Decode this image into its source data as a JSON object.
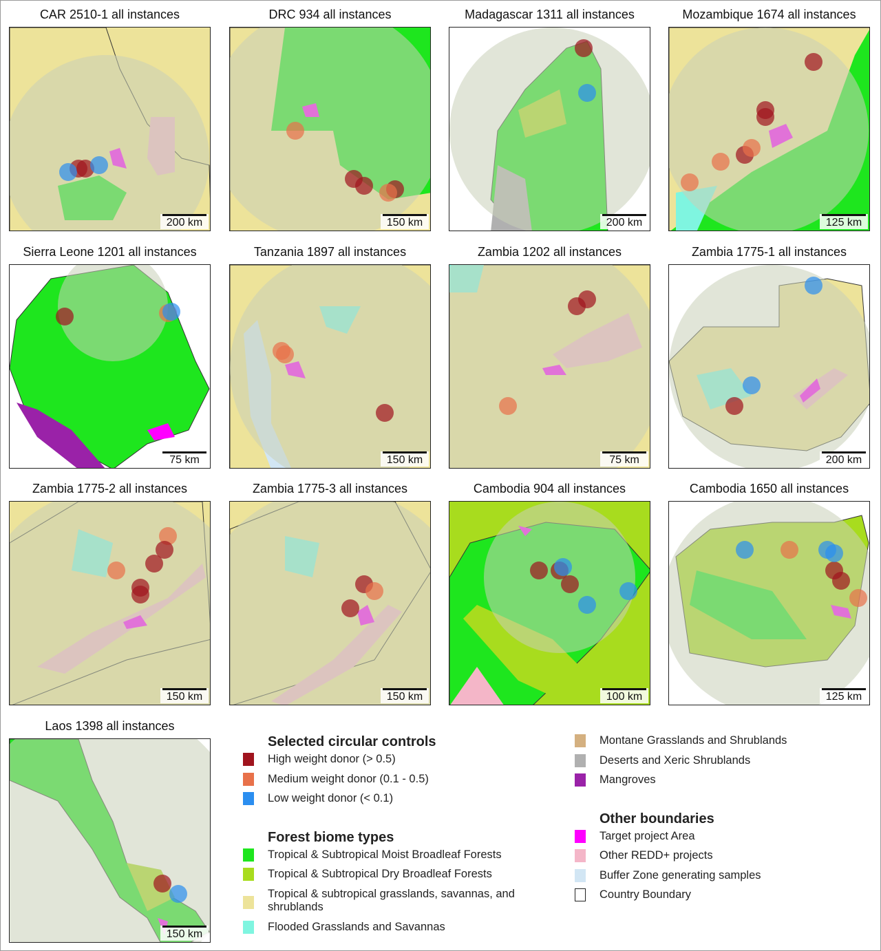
{
  "panels": [
    {
      "title": "CAR 2510-1 all instances",
      "scale": "200 km"
    },
    {
      "title": "DRC 934 all instances",
      "scale": "150 km"
    },
    {
      "title": "Madagascar 1311 all instances",
      "scale": "200 km"
    },
    {
      "title": "Mozambique 1674 all instances",
      "scale": "125 km"
    },
    {
      "title": "Sierra Leone 1201 all instances",
      "scale": "75 km"
    },
    {
      "title": "Tanzania 1897 all instances",
      "scale": "150 km"
    },
    {
      "title": "Zambia 1202 all instances",
      "scale": "75 km"
    },
    {
      "title": "Zambia 1775-1 all instances",
      "scale": "200 km"
    },
    {
      "title": "Zambia 1775-2 all instances",
      "scale": "150 km"
    },
    {
      "title": "Zambia 1775-3 all instances",
      "scale": "150 km"
    },
    {
      "title": "Cambodia 904 all instances",
      "scale": "100 km"
    },
    {
      "title": "Cambodia 1650 all instances",
      "scale": "125 km"
    },
    {
      "title": "Laos 1398 all instances",
      "scale": "150 km"
    }
  ],
  "legend": {
    "controls": {
      "title": "Selected circular controls",
      "items": [
        {
          "label": "High weight donor (> 0.5)",
          "color": "#a0141e"
        },
        {
          "label": "Medium weight donor (0.1 - 0.5)",
          "color": "#e8714a"
        },
        {
          "label": "Low weight donor (< 0.1)",
          "color": "#2b8ef0"
        }
      ]
    },
    "biomes": {
      "title": "Forest biome types",
      "items": [
        {
          "label": "Tropical & Subtropical Moist Broadleaf Forests",
          "color": "#1ee61e"
        },
        {
          "label": "Tropical & Subtropical Dry Broadleaf Forests",
          "color": "#a8dc1e"
        },
        {
          "label": "Tropical & subtropical grasslands, savannas, and shrublands",
          "color": "#ede39a"
        },
        {
          "label": "Flooded Grasslands and Savannas",
          "color": "#7ff5e0"
        }
      ]
    },
    "biomes2": {
      "items": [
        {
          "label": "Montane Grasslands and Shrublands",
          "color": "#d4b080"
        },
        {
          "label": "Deserts and Xeric Shrublands",
          "color": "#b0b0b0"
        },
        {
          "label": "Mangroves",
          "color": "#9a22a8"
        }
      ]
    },
    "boundaries": {
      "title": "Other boundaries",
      "items": [
        {
          "label": "Target project Area",
          "color": "#ff00ff"
        },
        {
          "label": "Other REDD+ projects",
          "color": "#f4b6c8"
        },
        {
          "label": "Buffer Zone generating samples",
          "color": "#d2e6f4"
        },
        {
          "label": "Country Boundary",
          "color": "#ffffff"
        }
      ]
    }
  }
}
